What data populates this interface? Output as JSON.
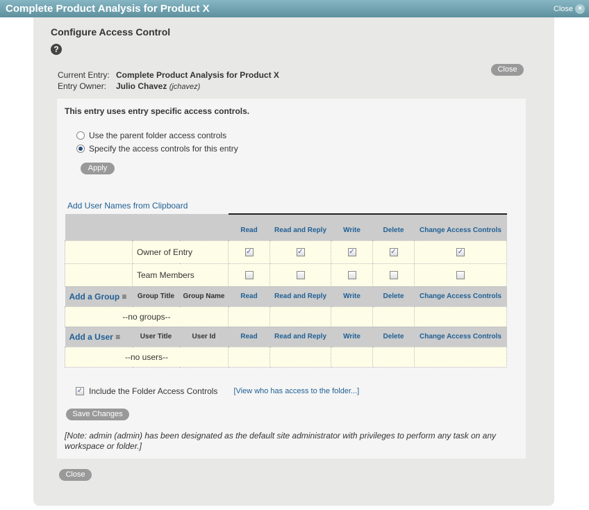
{
  "window": {
    "title": "Complete Product Analysis for Product X",
    "close_label": "Close"
  },
  "dialog": {
    "heading": "Configure Access Control",
    "close_label": "Close",
    "bottom_close_label": "Close",
    "current_entry_label": "Current Entry:",
    "current_entry": "Complete Product Analysis for Product X",
    "entry_owner_label": "Entry Owner:",
    "entry_owner": "Julio Chavez",
    "entry_owner_id": "(jchavez)"
  },
  "access": {
    "status": "This entry uses entry specific access controls.",
    "options": [
      {
        "label": "Use the parent folder access controls",
        "selected": false
      },
      {
        "label": "Specify the access controls for this entry",
        "selected": true
      }
    ],
    "apply_label": "Apply",
    "clipboard_link": "Add User Names from Clipboard"
  },
  "table": {
    "rights": [
      "Read",
      "Read and Reply",
      "Write",
      "Delete",
      "Change Access Controls"
    ],
    "roles": [
      {
        "name": "Owner of Entry",
        "checked": [
          true,
          true,
          true,
          true,
          true
        ]
      },
      {
        "name": "Team Members",
        "checked": [
          false,
          false,
          false,
          false,
          false
        ]
      }
    ],
    "group_section": {
      "add": "Add a Group",
      "col1": "Group Title",
      "col2": "Group Name",
      "empty": "--no groups--"
    },
    "user_section": {
      "add": "Add a User",
      "col1": "User Title",
      "col2": "User Id",
      "empty": "--no users--"
    }
  },
  "footer": {
    "include_label": "Include the Folder Access Controls",
    "include_checked": true,
    "view_link": "[View who has access to the folder...]",
    "save_label": "Save Changes",
    "note": "[Note: admin (admin) has been designated as the default site administrator with privileges to perform any task on any workspace or folder.]"
  }
}
